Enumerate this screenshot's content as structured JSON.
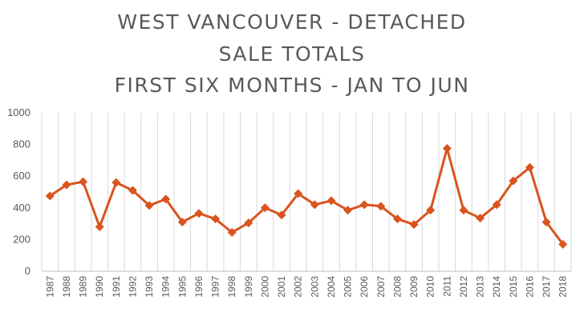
{
  "title_lines": [
    "WEST VANCOUVER - DETACHED",
    "SALE TOTALS",
    "FIRST SIX MONTHS - JAN TO JUN"
  ],
  "colors": {
    "line": "#D9541E",
    "grid": "#d9d9d9",
    "text": "#595959"
  },
  "chart_data": {
    "type": "line",
    "title": "WEST VANCOUVER - DETACHED SALE TOTALS FIRST SIX MONTHS - JAN TO JUN",
    "categories": [
      "1987",
      "1988",
      "1989",
      "1990",
      "1991",
      "1992",
      "1993",
      "1994",
      "1995",
      "1996",
      "1997",
      "1998",
      "1999",
      "2000",
      "2001",
      "2002",
      "2003",
      "2004",
      "2005",
      "2006",
      "2007",
      "2008",
      "2009",
      "2010",
      "2011",
      "2012",
      "2013",
      "2014",
      "2015",
      "2016",
      "2017",
      "2018"
    ],
    "series": [
      {
        "values": [
          475,
          545,
          565,
          280,
          560,
          510,
          415,
          455,
          310,
          365,
          330,
          245,
          305,
          400,
          355,
          490,
          420,
          445,
          385,
          420,
          410,
          330,
          295,
          385,
          775,
          385,
          335,
          420,
          570,
          655,
          310,
          170
        ]
      }
    ],
    "ylim": [
      0,
      1000
    ],
    "yticks": [
      0,
      200,
      400,
      600,
      800,
      1000
    ],
    "grid": "vertical",
    "marker": "diamond"
  }
}
